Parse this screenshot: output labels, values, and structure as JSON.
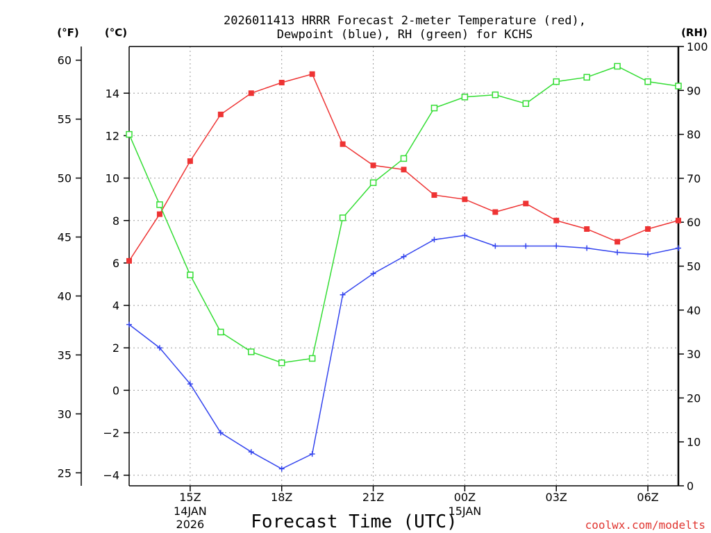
{
  "chart_data": {
    "type": "line",
    "title_line1": "2026011413 HRRR Forecast 2-meter Temperature (red),",
    "title_line2": "Dewpoint (blue), RH (green) for KCHS",
    "xlabel": "Forecast Time (UTC)",
    "credit": "coolwx.com/modelts",
    "units": {
      "fahrenheit": "(°F)",
      "celsius": "(°C)",
      "rh": "(RH)"
    },
    "hours": [
      13,
      14,
      15,
      16,
      17,
      18,
      19,
      20,
      21,
      22,
      23,
      24,
      25,
      26,
      27,
      28,
      29,
      30,
      31
    ],
    "x_ticks": [
      {
        "hour": 15,
        "label": "15Z",
        "sub1": "14JAN",
        "sub2": "2026"
      },
      {
        "hour": 18,
        "label": "18Z",
        "sub1": "",
        "sub2": ""
      },
      {
        "hour": 21,
        "label": "21Z",
        "sub1": "",
        "sub2": ""
      },
      {
        "hour": 24,
        "label": "00Z",
        "sub1": "15JAN",
        "sub2": ""
      },
      {
        "hour": 27,
        "label": "03Z",
        "sub1": "",
        "sub2": ""
      },
      {
        "hour": 30,
        "label": "06Z",
        "sub1": "",
        "sub2": ""
      }
    ],
    "xlim": [
      13,
      31
    ],
    "celsius_axis": {
      "ylim": [
        -4.5,
        16.2
      ],
      "ticks": [
        -4,
        -2,
        0,
        2,
        4,
        6,
        8,
        10,
        12,
        14
      ]
    },
    "fahrenheit_axis": {
      "ticks": [
        25,
        30,
        35,
        40,
        45,
        50,
        55,
        60
      ]
    },
    "rh_axis": {
      "ylim": [
        0,
        100
      ],
      "ticks": [
        0,
        10,
        20,
        30,
        40,
        50,
        60,
        70,
        80,
        90,
        100
      ]
    },
    "series": [
      {
        "name": "Temperature",
        "color": "#ee3333",
        "marker": "filled-square",
        "axis": "celsius",
        "values": [
          6.1,
          8.3,
          10.8,
          13.0,
          14.0,
          14.5,
          14.9,
          11.6,
          10.6,
          10.4,
          9.2,
          9.0,
          8.4,
          8.8,
          8.0,
          7.6,
          7.0,
          7.6,
          8.0
        ]
      },
      {
        "name": "Dewpoint",
        "color": "#3344ee",
        "marker": "plus",
        "axis": "celsius",
        "values": [
          3.1,
          2.0,
          0.3,
          -2.0,
          -2.9,
          -3.7,
          -3.0,
          4.5,
          5.5,
          6.3,
          7.1,
          7.3,
          6.8,
          6.8,
          6.8,
          6.7,
          6.5,
          6.4,
          6.7
        ]
      },
      {
        "name": "RH",
        "color": "#33dd33",
        "marker": "open-square",
        "axis": "rh",
        "values": [
          80,
          64,
          48,
          35,
          30.5,
          28,
          29,
          61,
          69,
          74.5,
          86,
          88.5,
          89,
          87,
          92,
          93,
          95.5,
          92,
          91
        ]
      }
    ]
  }
}
